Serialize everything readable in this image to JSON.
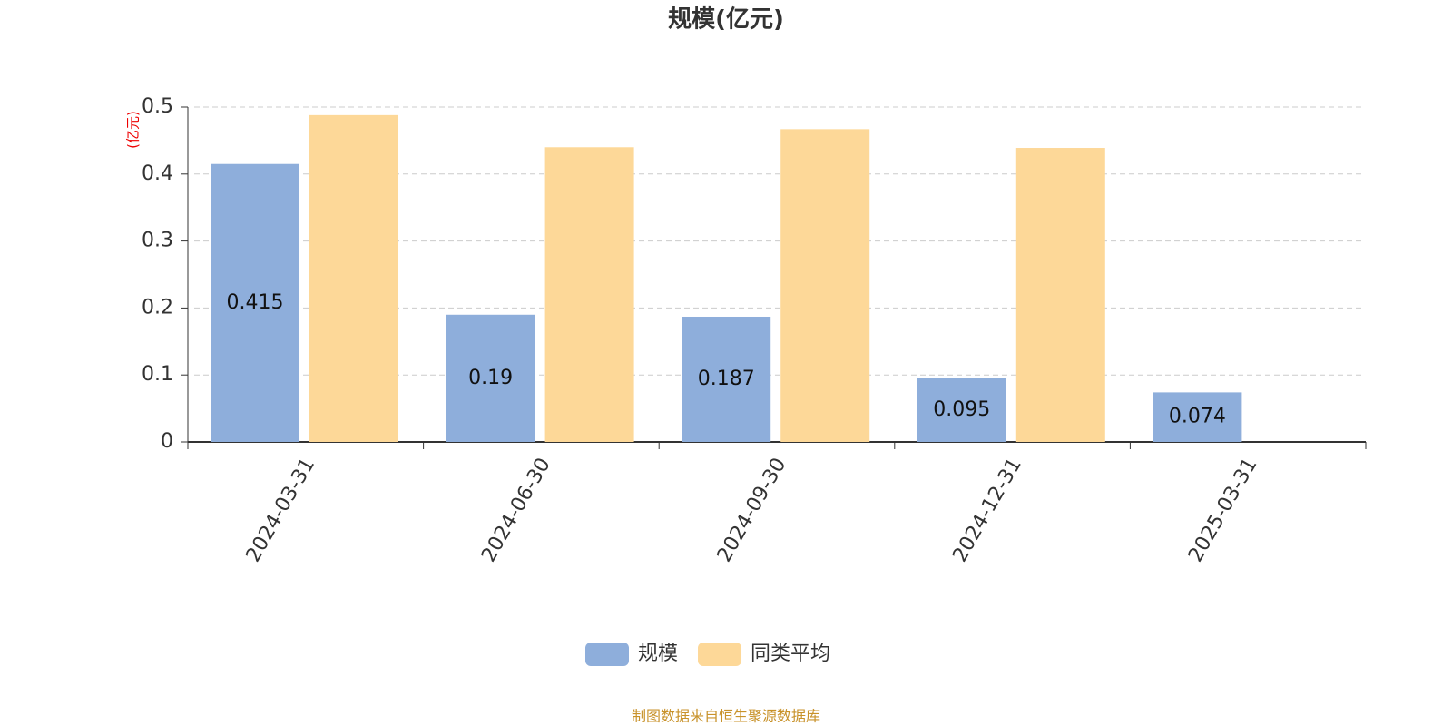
{
  "chart_data": {
    "type": "bar",
    "title": "规模(亿元)",
    "y_label": "(亿元)",
    "categories": [
      "2024-03-31",
      "2024-06-30",
      "2024-09-30",
      "2024-12-31",
      "2025-03-31"
    ],
    "series": [
      {
        "name": "规模",
        "color": "#8eaedb",
        "values": [
          0.415,
          0.19,
          0.187,
          0.095,
          0.074
        ],
        "data_labels": true
      },
      {
        "name": "同类平均",
        "color": "#fdd898",
        "values": [
          0.488,
          0.44,
          0.467,
          0.439,
          null
        ],
        "data_labels": false
      }
    ],
    "ylim": [
      0,
      0.5
    ],
    "yticks": [
      0,
      0.1,
      0.2,
      0.3,
      0.4,
      0.5
    ],
    "grid": true,
    "legend": "bottom",
    "source": "制图数据来自恒生聚源数据库"
  }
}
